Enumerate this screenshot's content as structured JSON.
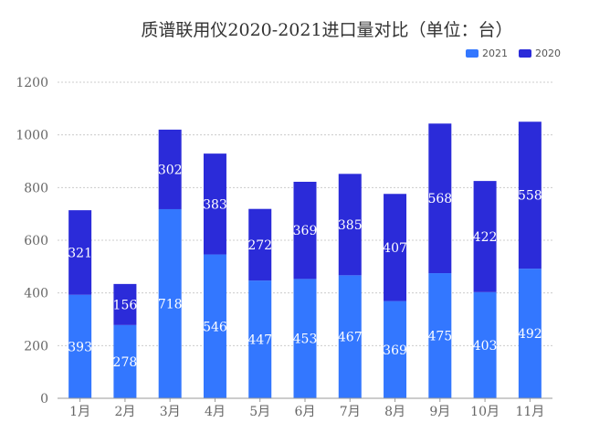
{
  "chart_data": {
    "type": "bar",
    "stacked": true,
    "title": "质谱联用仪2020-2021进口量对比（单位：台）",
    "categories": [
      "1月",
      "2月",
      "3月",
      "4月",
      "5月",
      "6月",
      "7月",
      "8月",
      "9月",
      "10月",
      "11月"
    ],
    "series": [
      {
        "name": "2021",
        "color": "#3377ff",
        "values": [
          393,
          278,
          718,
          546,
          447,
          453,
          467,
          369,
          475,
          403,
          492
        ]
      },
      {
        "name": "2020",
        "color": "#2b2bd9",
        "values": [
          321,
          156,
          302,
          383,
          272,
          369,
          385,
          407,
          568,
          422,
          558
        ]
      }
    ],
    "ylim": [
      0,
      1200
    ],
    "yticks": [
      0,
      200,
      400,
      600,
      800,
      1000,
      1200
    ],
    "grid": true,
    "legend_position": "top-right",
    "xlabel": "",
    "ylabel": ""
  }
}
